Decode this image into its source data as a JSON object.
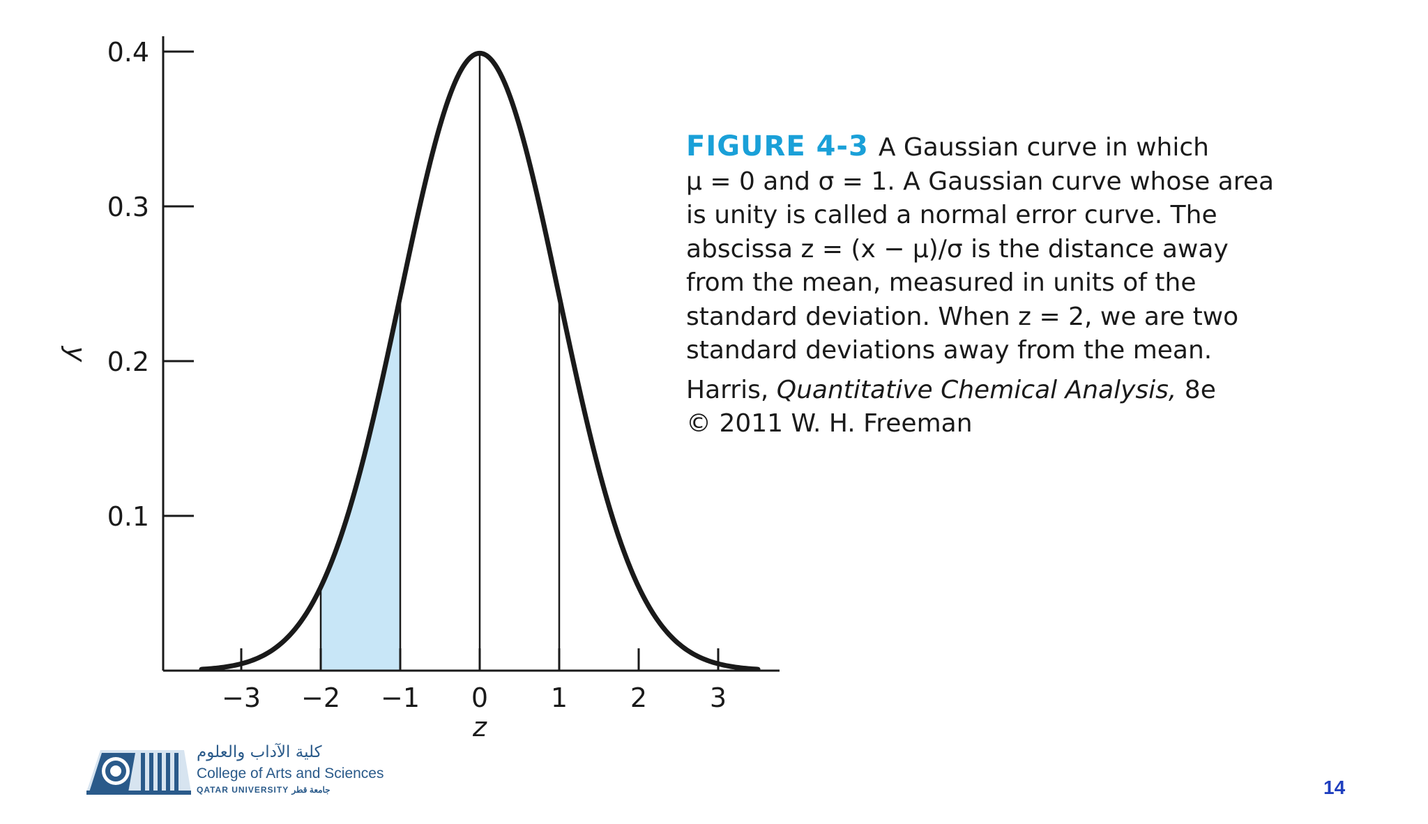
{
  "chart_data": {
    "type": "line",
    "xlabel": "z",
    "ylabel": "y",
    "xlim": [
      -3.5,
      3.5
    ],
    "ylim": [
      0,
      0.4
    ],
    "x_ticks": [
      "−3",
      "−2",
      "−1",
      "0",
      "1",
      "2",
      "3"
    ],
    "y_ticks": [
      "0.1",
      "0.2",
      "0.3",
      "0.4"
    ],
    "series": [
      {
        "x": [
          -3.5,
          -3.0,
          -2.5,
          -2.0,
          -1.5,
          -1.0,
          -0.5,
          0.0,
          0.5,
          1.0,
          1.5,
          2.0,
          2.5,
          3.0,
          3.5
        ],
        "values": [
          0.0009,
          0.0044,
          0.0175,
          0.054,
          0.1295,
          0.242,
          0.3521,
          0.3989,
          0.3521,
          0.242,
          0.1295,
          0.054,
          0.0175,
          0.0044,
          0.0009
        ]
      }
    ],
    "shaded_region": {
      "from": -2,
      "to": -1,
      "color": "#c8e6f7"
    },
    "vertical_lines": [
      -2,
      -1,
      0,
      1
    ],
    "grid": false
  },
  "caption": {
    "figure_label": "FIGURE 4-3",
    "lines": [
      "A Gaussian curve in which",
      "μ = 0 and σ = 1. A Gaussian curve whose area",
      "is unity is called a normal error curve. The",
      "abscissa z = (x − μ)/σ is the distance away",
      "from the mean, measured in units of the",
      "standard deviation. When z = 2, we are two",
      "standard deviations away from the mean."
    ],
    "ref_author": "Harris,",
    "ref_title": "Quantitative Chemical Analysis,",
    "ref_edition": "8e",
    "copyright": "© 2011 W. H. Freeman"
  },
  "logo": {
    "arabic": "كلية الآداب والعلوم",
    "english": "College of Arts and Sciences",
    "university": "QATAR UNIVERSITY جامعة قطر"
  },
  "page_number": "14",
  "colors": {
    "curve": "#1a1a1a",
    "shade": "#c8e6f7",
    "figure_label": "#1aa0d8",
    "page_number": "#1f3fbf",
    "logo": "#2a5a8a"
  }
}
